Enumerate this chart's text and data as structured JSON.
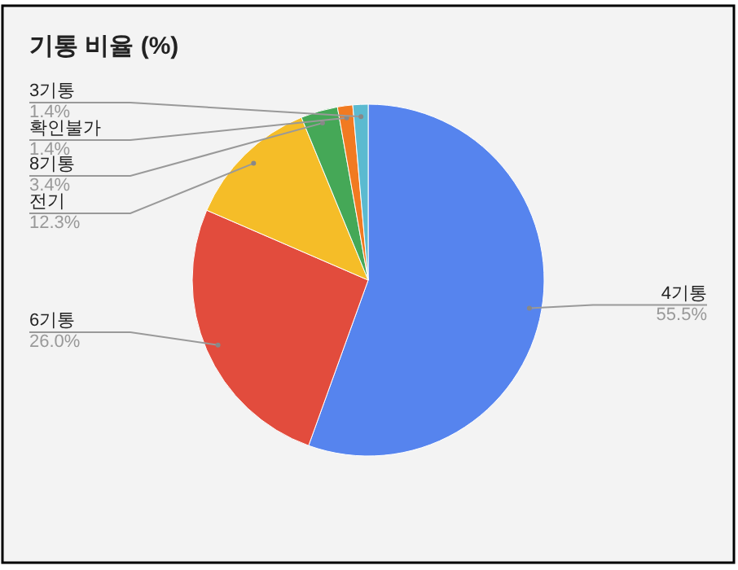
{
  "chart_data": {
    "type": "pie",
    "title": "기통 비율 (%)",
    "categories": [
      "4기통",
      "6기통",
      "전기",
      "8기통",
      "확인불가",
      "3기통"
    ],
    "values": [
      55.5,
      26.0,
      12.3,
      3.4,
      1.4,
      1.4
    ],
    "value_labels": [
      "55.5%",
      "26.0%",
      "12.3%",
      "3.4%",
      "1.4%",
      "1.4%"
    ],
    "colors": [
      "#5684ee",
      "#e24c3d",
      "#f5bd28",
      "#45a857",
      "#f17a21",
      "#5bbad0"
    ]
  }
}
